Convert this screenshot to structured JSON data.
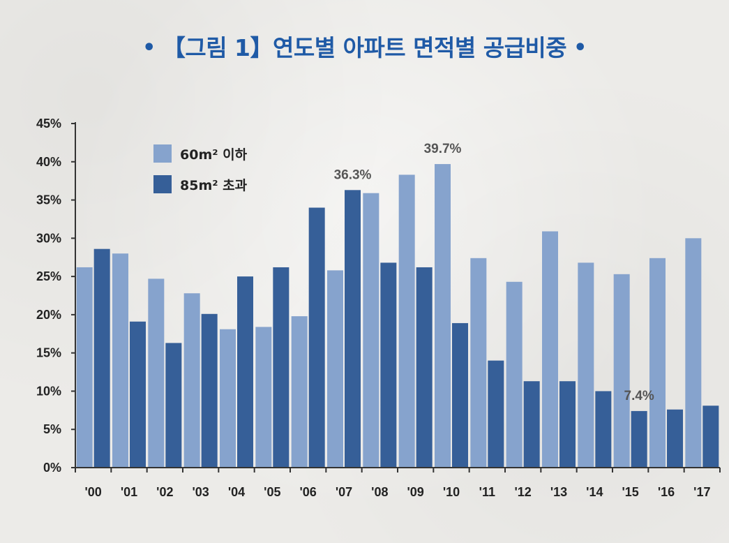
{
  "title": {
    "bullet_left": "•",
    "text": "【그림 1】연도별 아파트 면적별 공급비중",
    "bullet_right": "•"
  },
  "colors": {
    "series_small": "#86a3cd",
    "series_large": "#365f98",
    "title": "#1f5aa6",
    "axis": "#333333"
  },
  "chart_data": {
    "type": "bar",
    "title": "【그림 1】연도별 아파트 면적별 공급비중",
    "xlabel": "",
    "ylabel": "",
    "ylim": [
      0,
      45
    ],
    "y_ticks": [
      "0%",
      "5%",
      "10%",
      "15%",
      "20%",
      "25%",
      "30%",
      "35%",
      "40%",
      "45%"
    ],
    "grid": false,
    "legend_position": "top-left",
    "categories": [
      "'00",
      "'01",
      "'02",
      "'03",
      "'04",
      "'05",
      "'06",
      "'07",
      "'08",
      "'09",
      "'10",
      "'11",
      "'12",
      "'13",
      "'14",
      "'15",
      "'16",
      "'17"
    ],
    "series": [
      {
        "name": "60m² 이하",
        "color": "#86a3cd",
        "values": [
          26.2,
          28.0,
          24.7,
          22.8,
          18.1,
          18.4,
          19.8,
          25.8,
          35.9,
          38.3,
          39.7,
          27.4,
          24.3,
          30.9,
          26.8,
          25.3,
          27.4,
          30.0
        ]
      },
      {
        "name": "85m² 초과",
        "color": "#365f98",
        "values": [
          28.6,
          19.1,
          16.3,
          20.1,
          25.0,
          26.2,
          34.0,
          36.3,
          26.8,
          26.2,
          18.9,
          14.0,
          11.3,
          11.3,
          10.0,
          7.4,
          7.6,
          8.1
        ]
      }
    ],
    "annotations": [
      {
        "text": "36.3%",
        "category": "'07",
        "series": 1
      },
      {
        "text": "39.7%",
        "category": "'10",
        "series": 0
      },
      {
        "text": "7.4%",
        "category": "'15",
        "series": 1
      }
    ]
  }
}
